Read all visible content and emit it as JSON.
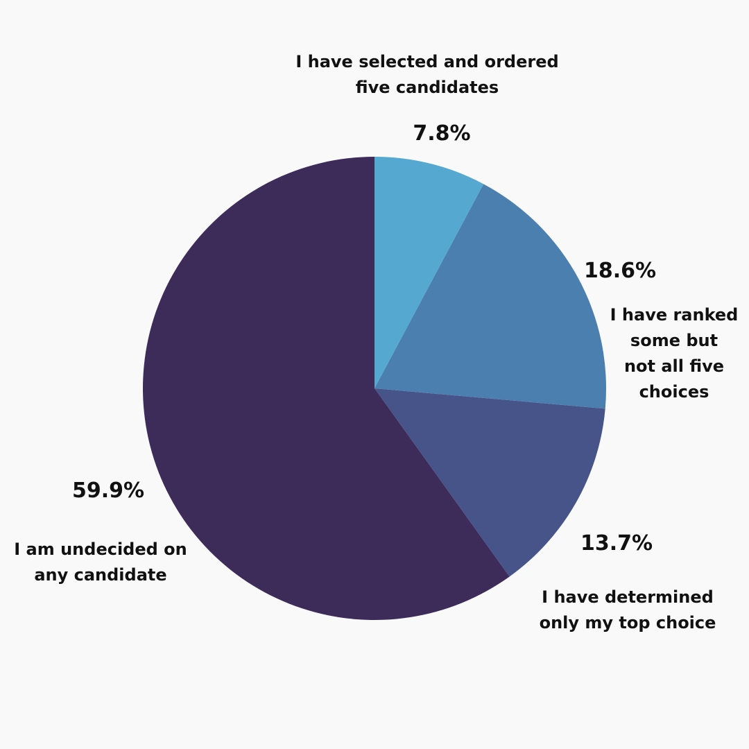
{
  "chart_data": {
    "type": "pie",
    "title": "",
    "slices": [
      {
        "label_lines": [
          "I have selected and ordered",
          "five candidates"
        ],
        "value": 7.8,
        "value_label": "7.8%",
        "color": "#55a9d1"
      },
      {
        "label_lines": [
          "I have ranked",
          "some but",
          "not all five",
          "choices"
        ],
        "value": 18.6,
        "value_label": "18.6%",
        "color": "#4b7fb0"
      },
      {
        "label_lines": [
          "I have determined",
          "only my top choice"
        ],
        "value": 13.7,
        "value_label": "13.7%",
        "color": "#465489"
      },
      {
        "label_lines": [
          "I am undecided on",
          "any candidate"
        ],
        "value": 59.9,
        "value_label": "59.9%",
        "color": "#3d2b5a"
      }
    ],
    "start_position": "top",
    "direction": "clockwise",
    "legend": "none"
  }
}
